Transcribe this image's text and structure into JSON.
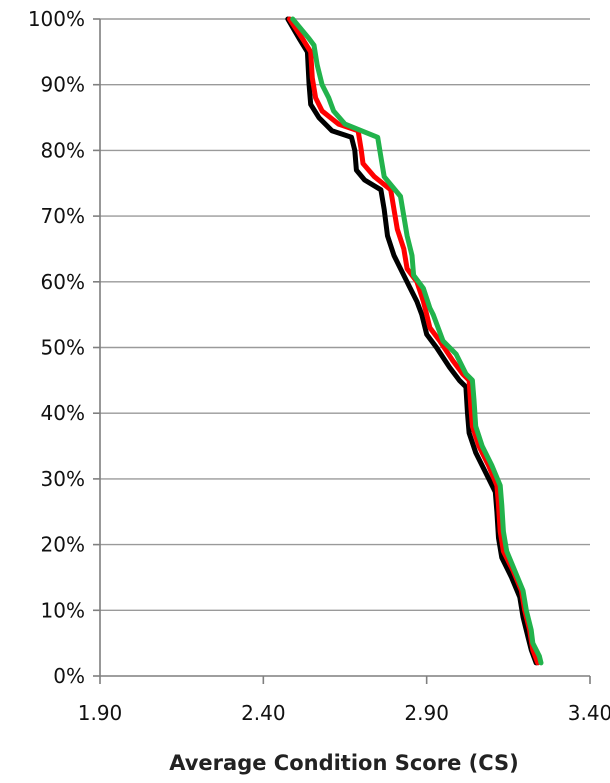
{
  "chart_data": {
    "type": "line",
    "title": "",
    "xlabel": "Average Condition Score (CS)",
    "ylabel": "",
    "xlim": [
      1.9,
      3.4
    ],
    "ylim": [
      0,
      100
    ],
    "x_ticks": [
      "1.90",
      "2.40",
      "2.90",
      "3.40"
    ],
    "x_tick_values": [
      1.9,
      2.4,
      2.9,
      3.4
    ],
    "y_ticks": [
      "0%",
      "10%",
      "20%",
      "30%",
      "40%",
      "50%",
      "60%",
      "70%",
      "80%",
      "90%",
      "100%"
    ],
    "y_tick_values": [
      0,
      10,
      20,
      30,
      40,
      50,
      60,
      70,
      80,
      90,
      100
    ],
    "grid": true,
    "legend": "none",
    "series": [
      {
        "color": "#000000",
        "points": [
          [
            2.475,
            100
          ],
          [
            2.51,
            97
          ],
          [
            2.535,
            95
          ],
          [
            2.54,
            90
          ],
          [
            2.545,
            87
          ],
          [
            2.57,
            85
          ],
          [
            2.61,
            83
          ],
          [
            2.67,
            82
          ],
          [
            2.68,
            80
          ],
          [
            2.685,
            77
          ],
          [
            2.71,
            75.5
          ],
          [
            2.76,
            74
          ],
          [
            2.77,
            71
          ],
          [
            2.78,
            67
          ],
          [
            2.8,
            64
          ],
          [
            2.82,
            62
          ],
          [
            2.85,
            59
          ],
          [
            2.87,
            57
          ],
          [
            2.885,
            55
          ],
          [
            2.9,
            52
          ],
          [
            2.93,
            50
          ],
          [
            2.97,
            47
          ],
          [
            3.0,
            45
          ],
          [
            3.02,
            44
          ],
          [
            3.025,
            40
          ],
          [
            3.03,
            37
          ],
          [
            3.05,
            34
          ],
          [
            3.08,
            31
          ],
          [
            3.11,
            28
          ],
          [
            3.115,
            25
          ],
          [
            3.12,
            21
          ],
          [
            3.13,
            18
          ],
          [
            3.16,
            15
          ],
          [
            3.185,
            12
          ],
          [
            3.195,
            9
          ],
          [
            3.21,
            6
          ],
          [
            3.22,
            4
          ],
          [
            3.235,
            2
          ]
        ]
      },
      {
        "color": "#ff0000",
        "points": [
          [
            2.48,
            100
          ],
          [
            2.52,
            97
          ],
          [
            2.545,
            95
          ],
          [
            2.55,
            91
          ],
          [
            2.56,
            88
          ],
          [
            2.58,
            86
          ],
          [
            2.63,
            84
          ],
          [
            2.69,
            83
          ],
          [
            2.7,
            80
          ],
          [
            2.705,
            78
          ],
          [
            2.74,
            76
          ],
          [
            2.79,
            74
          ],
          [
            2.8,
            71
          ],
          [
            2.81,
            68
          ],
          [
            2.83,
            65
          ],
          [
            2.84,
            62
          ],
          [
            2.87,
            60
          ],
          [
            2.89,
            57
          ],
          [
            2.9,
            55
          ],
          [
            2.91,
            53
          ],
          [
            2.94,
            51
          ],
          [
            2.98,
            48
          ],
          [
            3.01,
            46
          ],
          [
            3.03,
            45
          ],
          [
            3.035,
            41
          ],
          [
            3.04,
            38
          ],
          [
            3.06,
            35
          ],
          [
            3.09,
            32
          ],
          [
            3.115,
            29
          ],
          [
            3.12,
            26
          ],
          [
            3.125,
            22
          ],
          [
            3.135,
            19
          ],
          [
            3.165,
            16
          ],
          [
            3.19,
            13
          ],
          [
            3.2,
            10
          ],
          [
            3.215,
            7
          ],
          [
            3.225,
            4
          ],
          [
            3.24,
            2
          ]
        ]
      },
      {
        "color": "#22b34c",
        "points": [
          [
            2.49,
            100
          ],
          [
            2.54,
            97
          ],
          [
            2.555,
            96
          ],
          [
            2.565,
            93
          ],
          [
            2.58,
            90
          ],
          [
            2.6,
            88
          ],
          [
            2.615,
            86
          ],
          [
            2.65,
            84
          ],
          [
            2.75,
            82
          ],
          [
            2.76,
            79
          ],
          [
            2.77,
            76
          ],
          [
            2.82,
            73
          ],
          [
            2.83,
            70
          ],
          [
            2.84,
            67
          ],
          [
            2.855,
            64
          ],
          [
            2.86,
            61
          ],
          [
            2.89,
            59
          ],
          [
            2.91,
            56
          ],
          [
            2.92,
            55
          ],
          [
            2.935,
            53
          ],
          [
            2.95,
            51
          ],
          [
            2.99,
            49
          ],
          [
            3.02,
            46
          ],
          [
            3.04,
            45
          ],
          [
            3.045,
            42
          ],
          [
            3.05,
            38
          ],
          [
            3.07,
            35
          ],
          [
            3.1,
            32
          ],
          [
            3.125,
            29
          ],
          [
            3.13,
            26
          ],
          [
            3.135,
            22
          ],
          [
            3.145,
            19
          ],
          [
            3.17,
            16
          ],
          [
            3.195,
            13
          ],
          [
            3.205,
            10
          ],
          [
            3.22,
            7
          ],
          [
            3.225,
            5
          ],
          [
            3.245,
            3
          ],
          [
            3.25,
            2
          ]
        ]
      }
    ]
  }
}
